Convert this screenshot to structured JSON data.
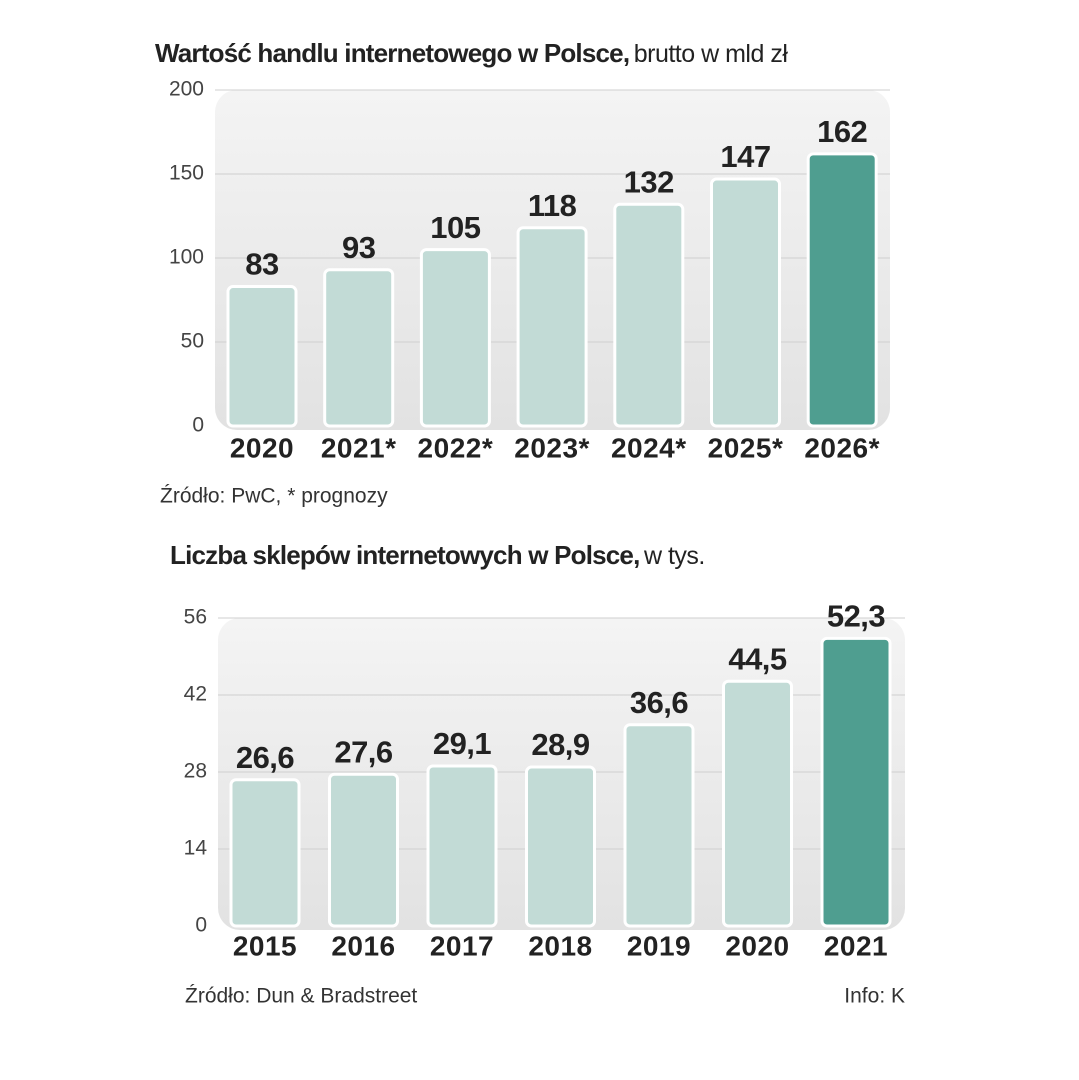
{
  "chart_data": [
    {
      "type": "bar",
      "title": "Wartość handlu internetowego w Polsce,",
      "subtitle": "brutto w mld zł",
      "categories": [
        "2020",
        "2021*",
        "2022*",
        "2023*",
        "2024*",
        "2025*",
        "2026*"
      ],
      "values": [
        83,
        93,
        105,
        118,
        132,
        147,
        162
      ],
      "colors": [
        "#c2dbd6",
        "#c2dbd6",
        "#c2dbd6",
        "#c2dbd6",
        "#c2dbd6",
        "#c2dbd6",
        "#4f9e90"
      ],
      "ylim": [
        0,
        200
      ],
      "yticks": [
        0,
        50,
        100,
        150,
        200
      ],
      "grid": true,
      "source": "Źródło: PwC, * prognozy"
    },
    {
      "type": "bar",
      "title": "Liczba sklepów internetowych w Polsce,",
      "subtitle": "w tys.",
      "categories": [
        "2015",
        "2016",
        "2017",
        "2018",
        "2019",
        "2020",
        "2021"
      ],
      "values": [
        26.6,
        27.6,
        29.1,
        28.9,
        36.6,
        44.5,
        52.3
      ],
      "value_labels": [
        "26,6",
        "27,6",
        "29,1",
        "28,9",
        "36,6",
        "44,5",
        "52,3"
      ],
      "colors": [
        "#c2dbd6",
        "#c2dbd6",
        "#c2dbd6",
        "#c2dbd6",
        "#c2dbd6",
        "#c2dbd6",
        "#4f9e90"
      ],
      "ylim": [
        0,
        56
      ],
      "yticks": [
        0,
        14,
        28,
        42,
        56
      ],
      "grid": true,
      "source": "Źródło: Dun & Bradstreet"
    }
  ],
  "credit": "Info: K"
}
